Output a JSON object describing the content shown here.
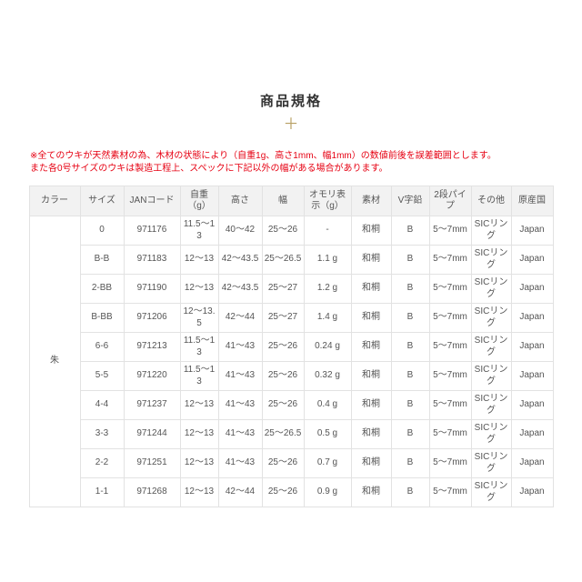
{
  "page": {
    "title": "商品規格",
    "plus_icon": "＋"
  },
  "notes": {
    "line1": "※全てのウキが天然素材の為、木材の状態により（自重1g、高さ1mm、幅1mm）の数値前後を誤差範囲とします。",
    "line2": "また各0号サイズのウキは製造工程上、スペックに下記以外の幅がある場合があります。"
  },
  "colors": {
    "note_red": "#e60012",
    "plus_gold": "#b79f63",
    "header_bg": "#f2f2f2",
    "border": "#e2e2e2",
    "text": "#555555"
  },
  "table": {
    "color_label": "朱",
    "headers": [
      "カラー",
      "サイズ",
      "JANコード",
      "自重（g）",
      "高さ",
      "幅",
      "オモリ表示（g）",
      "素材",
      "V字鉛",
      "2段パイプ",
      "その他",
      "原産国"
    ],
    "rows": [
      [
        "0",
        "971176",
        "11.5～13",
        "40～42",
        "25～26",
        "-",
        "和桐",
        "B",
        "5～7mm",
        "SICリング",
        "Japan"
      ],
      [
        "B-B",
        "971183",
        "12～13",
        "42～43.5",
        "25～26.5",
        "1.1 g",
        "和桐",
        "B",
        "5～7mm",
        "SICリング",
        "Japan"
      ],
      [
        "2-BB",
        "971190",
        "12～13",
        "42～43.5",
        "25～27",
        "1.2 g",
        "和桐",
        "B",
        "5～7mm",
        "SICリング",
        "Japan"
      ],
      [
        "B-BB",
        "971206",
        "12～13.5",
        "42～44",
        "25～27",
        "1.4 g",
        "和桐",
        "B",
        "5～7mm",
        "SICリング",
        "Japan"
      ],
      [
        "6-6",
        "971213",
        "11.5～13",
        "41～43",
        "25～26",
        "0.24 g",
        "和桐",
        "B",
        "5～7mm",
        "SICリング",
        "Japan"
      ],
      [
        "5-5",
        "971220",
        "11.5～13",
        "41～43",
        "25～26",
        "0.32 g",
        "和桐",
        "B",
        "5～7mm",
        "SICリング",
        "Japan"
      ],
      [
        "4-4",
        "971237",
        "12～13",
        "41～43",
        "25～26",
        "0.4 g",
        "和桐",
        "B",
        "5～7mm",
        "SICリング",
        "Japan"
      ],
      [
        "3-3",
        "971244",
        "12～13",
        "41～43",
        "25～26.5",
        "0.5 g",
        "和桐",
        "B",
        "5～7mm",
        "SICリング",
        "Japan"
      ],
      [
        "2-2",
        "971251",
        "12～13",
        "41～43",
        "25～26",
        "0.7 g",
        "和桐",
        "B",
        "5～7mm",
        "SICリング",
        "Japan"
      ],
      [
        "1-1",
        "971268",
        "12～13",
        "42～44",
        "25～26",
        "0.9 g",
        "和桐",
        "B",
        "5～7mm",
        "SICリング",
        "Japan"
      ]
    ]
  }
}
